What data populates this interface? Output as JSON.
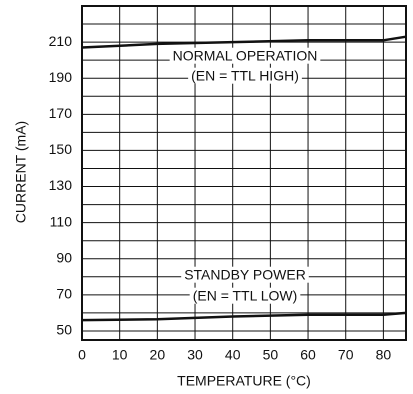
{
  "chart_data": {
    "type": "line",
    "xlabel": "TEMPERATURE (°C)",
    "ylabel": "CURRENT (mA)",
    "annotations": [
      [
        "NORMAL OPERATION",
        "(EN = TTL HIGH)"
      ],
      [
        "STANDBY POWER",
        "(EN = TTL LOW)"
      ]
    ],
    "x": [
      0,
      20,
      40,
      60,
      80,
      86
    ],
    "series": [
      {
        "name": "NORMAL OPERATION",
        "color": "#111111",
        "values": [
          207,
          209,
          210,
          211,
          211,
          213
        ]
      },
      {
        "name": "STANDBY POWER",
        "color": "#111111",
        "values": [
          56,
          56.5,
          58,
          59,
          59,
          60
        ]
      }
    ],
    "xlim": [
      0,
      86
    ],
    "ylim": [
      45,
      230
    ],
    "xticks": [
      0,
      10,
      20,
      30,
      40,
      50,
      60,
      70,
      80
    ],
    "yticks": [
      50,
      70,
      90,
      110,
      130,
      150,
      170,
      190,
      210
    ],
    "yminorticks": [
      60,
      80,
      100,
      120,
      140,
      160,
      180,
      200,
      220
    ],
    "grid": true
  }
}
